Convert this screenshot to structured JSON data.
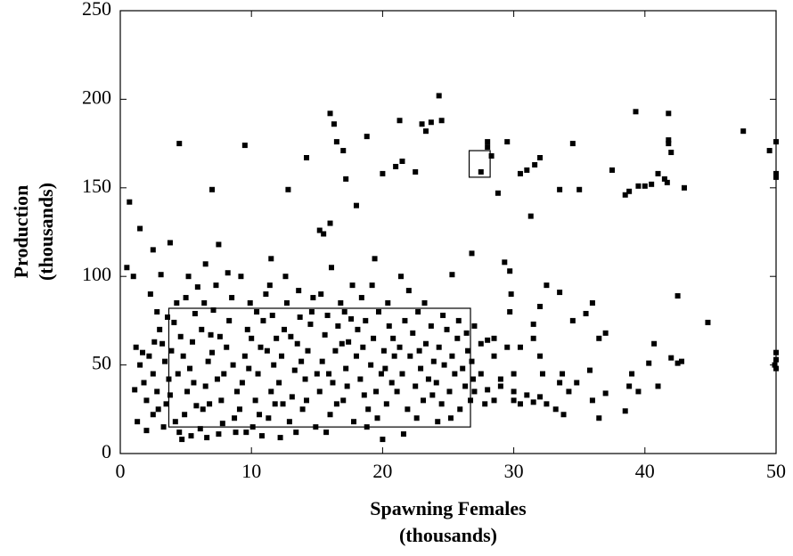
{
  "chart_data": {
    "type": "scatter",
    "xlabel": [
      "Spawning Females",
      "(thousands)"
    ],
    "ylabel": [
      "Production",
      "(thousands)"
    ],
    "color": "#000000",
    "xlim": [
      0,
      50
    ],
    "xticks": [
      0,
      10,
      20,
      30,
      40,
      50
    ],
    "ylim": [
      0,
      250
    ],
    "yticks": [
      0,
      50,
      100,
      150,
      200,
      250
    ],
    "boxes": [
      {
        "xlim": [
          3.7,
          26.7
        ],
        "ylim": [
          15,
          82
        ]
      },
      {
        "xlim": [
          26.6,
          28.2
        ],
        "ylim": [
          156,
          171
        ]
      }
    ],
    "x": [
      0.5,
      0.7,
      1,
      1.5,
      4.5,
      7,
      9.5,
      3.8,
      2.5,
      6.5,
      7.5,
      11.5,
      12.8,
      14.2,
      15.2,
      15.5,
      16,
      16,
      16.3,
      16.5,
      17,
      17.2,
      18,
      18.8,
      20,
      21,
      21.5,
      21.3,
      22.5,
      23,
      23.3,
      23.7,
      24.3,
      24.5,
      25.3,
      26.8,
      27.5,
      28,
      28,
      28.3,
      28.8,
      29.5,
      29.3,
      29.7,
      30.5,
      31,
      31.3,
      31.6,
      32,
      32.5,
      34.5,
      33.5,
      35,
      33.5,
      34.5,
      35.5,
      36,
      36.5,
      37,
      37.5,
      38.5,
      39.3,
      39.5,
      40,
      40.5,
      38.8,
      41,
      41.5,
      41.8,
      41.8,
      41.8,
      42,
      41.7,
      42.5,
      42.8,
      43,
      44.8,
      47.5,
      49.5,
      50,
      50,
      50,
      49.9,
      50,
      50,
      50,
      39,
      39.5,
      40.3,
      40.7,
      41,
      42,
      42.5,
      38.5,
      38.8,
      36,
      36.5,
      37,
      35.8,
      34.8,
      33.7,
      33.5,
      32.2,
      32,
      31.5,
      31.5,
      32,
      30,
      30.5,
      31,
      31.5,
      32,
      32.5,
      33.2,
      33.8,
      34.2,
      30.5,
      29.5,
      29.7,
      29.8,
      28.5,
      27.5,
      27,
      28,
      29,
      30,
      28.5,
      28,
      27.5,
      28.5,
      29,
      30,
      27,
      27.8,
      1.2,
      1.5,
      1.8,
      2,
      2.2,
      2.5,
      2.8,
      1.3,
      2,
      2.5,
      3,
      2.8,
      2.3,
      1.7,
      2.9,
      1.1,
      3.1,
      2.6,
      3.3,
      3.5,
      3.7,
      3.9,
      4.1,
      4.3,
      4.5,
      4.7,
      4.9,
      5.1,
      5.3,
      5.5,
      5.7,
      5.9,
      3.4,
      3.8,
      4.2,
      4.6,
      5,
      5.4,
      5.8,
      4.4,
      3.6,
      5.2,
      4.8,
      5.6,
      3.2,
      6.1,
      6.3,
      6.5,
      6.7,
      6.9,
      7.1,
      7.3,
      7.5,
      7.7,
      7.9,
      8.1,
      8.3,
      8.5,
      8.7,
      8.9,
      6.2,
      6.6,
      7,
      7.4,
      7.8,
      8.2,
      8.6,
      6.4,
      7.6,
      8.8,
      6.8,
      9.1,
      9.3,
      9.5,
      9.7,
      9.9,
      10.1,
      10.3,
      10.5,
      10.7,
      10.9,
      11.1,
      11.3,
      11.5,
      11.7,
      11.9,
      9.2,
      9.6,
      10,
      10.4,
      10.8,
      11.2,
      11.6,
      9.8,
      10.6,
      11.4,
      11.8,
      12.1,
      12.3,
      12.5,
      12.7,
      12.9,
      13.1,
      13.3,
      13.5,
      13.7,
      13.9,
      14.1,
      14.3,
      14.5,
      14.7,
      14.9,
      12.2,
      12.6,
      13,
      13.4,
      13.8,
      14.2,
      14.6,
      15,
      12.4,
      13.6,
      15.2,
      15.4,
      15.6,
      15.8,
      16,
      16.2,
      16.4,
      16.6,
      16.8,
      17,
      17.2,
      17.4,
      17.6,
      17.8,
      18,
      15.3,
      15.7,
      16.1,
      16.5,
      16.9,
      17.3,
      17.7,
      18.1,
      15.9,
      17.1,
      18.3,
      18.5,
      18.7,
      18.9,
      19.1,
      19.3,
      19.5,
      19.7,
      19.9,
      20.1,
      20.3,
      20.5,
      20.7,
      20.9,
      18.4,
      18.8,
      19.2,
      19.6,
      20,
      20.4,
      20.8,
      19.4,
      18.6,
      20.2,
      21.1,
      21.3,
      21.5,
      21.7,
      21.9,
      22.1,
      22.3,
      22.5,
      22.7,
      22.9,
      23.1,
      23.3,
      23.5,
      23.7,
      23.9,
      21.6,
      22,
      22.6,
      23.2,
      23.8,
      21.4,
      22.8,
      24.1,
      24.3,
      24.5,
      24.7,
      24.9,
      25.1,
      25.3,
      25.5,
      25.7,
      25.9,
      26.1,
      26.3,
      26.5,
      26.7,
      26.9,
      24.6,
      25.2,
      25.8,
      26.4,
      24.2,
      26.8
    ],
    "values": [
      105,
      142,
      100,
      127,
      175,
      149,
      174,
      119,
      115,
      107,
      118,
      110,
      149,
      167,
      126,
      124,
      130,
      192,
      186,
      176,
      171,
      155,
      140,
      179,
      158,
      162,
      165,
      188,
      159,
      186,
      182,
      187,
      202,
      188,
      101,
      113,
      159,
      173,
      176,
      168,
      147,
      176,
      108,
      103,
      158,
      160,
      134,
      163,
      167,
      95,
      175,
      149,
      149,
      91,
      75,
      79,
      85,
      65,
      68,
      160,
      146,
      193,
      151,
      151,
      152,
      148,
      158,
      155,
      192,
      177,
      175,
      170,
      153,
      89,
      52,
      150,
      74,
      182,
      171,
      176,
      158,
      156,
      50,
      53,
      57,
      48,
      45,
      35,
      51,
      62,
      38,
      54,
      51,
      24,
      38,
      30,
      20,
      34,
      47,
      40,
      45,
      40,
      45,
      55,
      65,
      73,
      83,
      30,
      28,
      33,
      29,
      32,
      28,
      25,
      22,
      35,
      60,
      60,
      80,
      90,
      65,
      62,
      72,
      64,
      42,
      45,
      30,
      36,
      45,
      55,
      38,
      35,
      35,
      28,
      60,
      50,
      40,
      30,
      55,
      45,
      35,
      18,
      13,
      22,
      70,
      80,
      90,
      57,
      25,
      36,
      101,
      63,
      15,
      28,
      42,
      58,
      74,
      85,
      12,
      8,
      22,
      35,
      48,
      63,
      79,
      94,
      52,
      33,
      18,
      66,
      88,
      10,
      27,
      45,
      77,
      100,
      55,
      40,
      62,
      14,
      25,
      38,
      52,
      67,
      81,
      95,
      11,
      30,
      45,
      60,
      75,
      88,
      20,
      35,
      70,
      9,
      57,
      42,
      17,
      102,
      50,
      85,
      66,
      12,
      28,
      25,
      40,
      55,
      70,
      85,
      15,
      30,
      45,
      60,
      75,
      90,
      20,
      35,
      50,
      65,
      100,
      12,
      65,
      80,
      10,
      58,
      78,
      48,
      22,
      95,
      28,
      40,
      55,
      70,
      85,
      18,
      32,
      47,
      62,
      77,
      25,
      42,
      58,
      73,
      88,
      15,
      9,
      100,
      66,
      12,
      52,
      30,
      80,
      45,
      28,
      92,
      35,
      52,
      67,
      78,
      22,
      40,
      58,
      72,
      85,
      30,
      48,
      63,
      76,
      18,
      55,
      90,
      12,
      105,
      28,
      62,
      38,
      95,
      70,
      45,
      80,
      42,
      60,
      75,
      25,
      50,
      65,
      35,
      80,
      45,
      58,
      28,
      72,
      40,
      55,
      88,
      15,
      95,
      20,
      8,
      85,
      65,
      110,
      33,
      48,
      35,
      60,
      45,
      75,
      25,
      55,
      68,
      38,
      80,
      48,
      30,
      62,
      42,
      72,
      52,
      11,
      92,
      20,
      85,
      33,
      100,
      58,
      40,
      60,
      28,
      50,
      70,
      35,
      55,
      45,
      65,
      25,
      48,
      38,
      58,
      30,
      42,
      78,
      20,
      75,
      68,
      18,
      52
    ]
  }
}
